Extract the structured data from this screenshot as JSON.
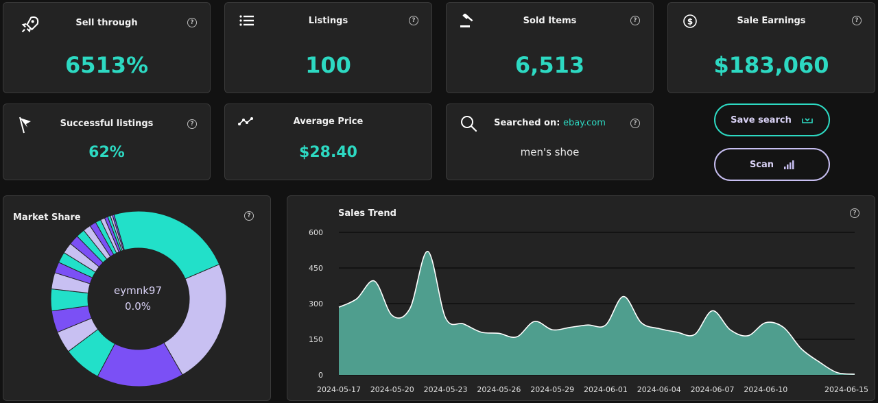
{
  "stats": {
    "sell_through": {
      "label": "Sell through",
      "value": "6513%"
    },
    "listings": {
      "label": "Listings",
      "value": "100"
    },
    "sold_items": {
      "label": "Sold Items",
      "value": "6,513"
    },
    "sale_earnings": {
      "label": "Sale Earnings",
      "value": "$183,060"
    },
    "successful_listings": {
      "label": "Successful listings",
      "value": "62%"
    },
    "average_price": {
      "label": "Average Price",
      "value": "$28.40"
    },
    "searched_on": {
      "label": "Searched on:",
      "site": "ebay.com",
      "query": "men's shoe"
    }
  },
  "help_glyph": "?",
  "buttons": {
    "save": "Save search",
    "scan": "Scan"
  },
  "market_share": {
    "title": "Market Share",
    "center_label": "eymnk97",
    "center_value": "0.0%"
  },
  "chart_data": {
    "type": "area",
    "title": "Sales Trend",
    "x": [
      "2024-05-17",
      "2024-05-18",
      "2024-05-19",
      "2024-05-20",
      "2024-05-21",
      "2024-05-22",
      "2024-05-23",
      "2024-05-24",
      "2024-05-25",
      "2024-05-26",
      "2024-05-27",
      "2024-05-28",
      "2024-05-29",
      "2024-05-30",
      "2024-05-31",
      "2024-06-01",
      "2024-06-02",
      "2024-06-03",
      "2024-06-04",
      "2024-06-05",
      "2024-06-06",
      "2024-06-07",
      "2024-06-08",
      "2024-06-09",
      "2024-06-10",
      "2024-06-11",
      "2024-06-12",
      "2024-06-13",
      "2024-06-14",
      "2024-06-15"
    ],
    "values": [
      285,
      320,
      395,
      250,
      280,
      520,
      240,
      215,
      180,
      175,
      160,
      225,
      190,
      200,
      210,
      210,
      330,
      220,
      195,
      180,
      170,
      270,
      190,
      165,
      220,
      200,
      110,
      55,
      10,
      3
    ],
    "x_tick_labels": [
      "2024-05-17",
      "2024-05-20",
      "2024-05-23",
      "2024-05-26",
      "2024-05-29",
      "2024-06-01",
      "2024-06-04",
      "2024-06-07",
      "2024-06-10",
      "2024-06-15"
    ],
    "y_ticks": [
      0,
      150,
      300,
      450,
      600
    ],
    "ylim": [
      0,
      600
    ],
    "grid": true,
    "color": "#4f9e8e"
  },
  "donut_data": {
    "type": "pie",
    "slices": [
      {
        "value": 23,
        "color": "#22e0c9"
      },
      {
        "value": 23,
        "color": "#c8c0f2"
      },
      {
        "value": 16,
        "color": "#7b50f5"
      },
      {
        "value": 7,
        "color": "#22e0c9"
      },
      {
        "value": 4,
        "color": "#c8c0f2"
      },
      {
        "value": 4,
        "color": "#7b50f5"
      },
      {
        "value": 4,
        "color": "#22e0c9"
      },
      {
        "value": 3,
        "color": "#c8c0f2"
      },
      {
        "value": 2,
        "color": "#7b50f5"
      },
      {
        "value": 2,
        "color": "#22e0c9"
      },
      {
        "value": 2,
        "color": "#c8c0f2"
      },
      {
        "value": 1.8,
        "color": "#7b50f5"
      },
      {
        "value": 1.6,
        "color": "#22e0c9"
      },
      {
        "value": 1.4,
        "color": "#c8c0f2"
      },
      {
        "value": 1.2,
        "color": "#7b50f5"
      },
      {
        "value": 1,
        "color": "#22e0c9"
      },
      {
        "value": 0.8,
        "color": "#c8c0f2"
      },
      {
        "value": 0.6,
        "color": "#7b50f5"
      },
      {
        "value": 0.5,
        "color": "#22e0c9"
      },
      {
        "value": 0.4,
        "color": "#c8c0f2"
      },
      {
        "value": 0.3,
        "color": "#7b50f5"
      }
    ]
  }
}
